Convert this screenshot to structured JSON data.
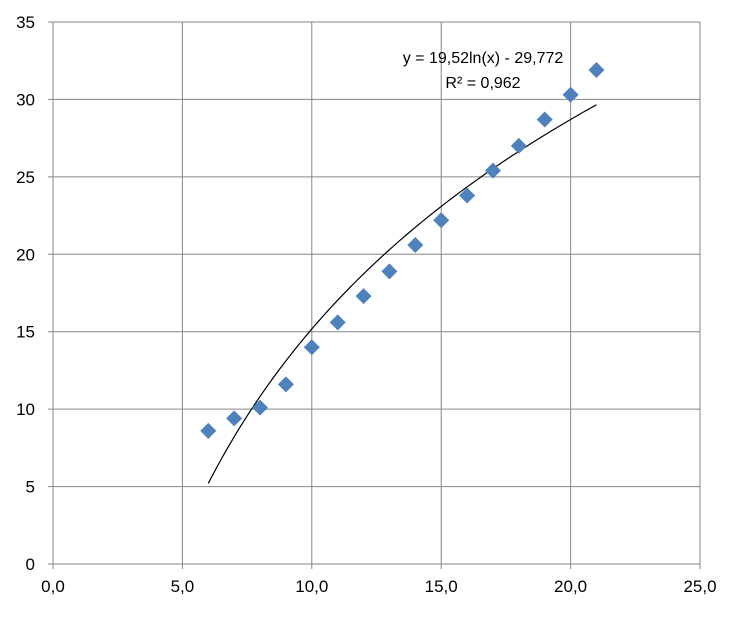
{
  "chart_data": {
    "type": "scatter",
    "title": "",
    "xlabel": "",
    "ylabel": "",
    "xlim": [
      0,
      25
    ],
    "ylim": [
      0,
      35
    ],
    "x_ticks": [
      0,
      5,
      10,
      15,
      20,
      25
    ],
    "y_ticks": [
      0,
      5,
      10,
      15,
      20,
      25,
      30,
      35
    ],
    "x_tick_labels": [
      "0,0",
      "5,0",
      "10,0",
      "15,0",
      "20,0",
      "25,0"
    ],
    "y_tick_labels": [
      "0",
      "5",
      "10",
      "15",
      "20",
      "25",
      "30",
      "35"
    ],
    "grid": true,
    "legend": "none",
    "series": [
      {
        "marker": "diamond",
        "color": "#4F81BD",
        "x": [
          6,
          7,
          8,
          9,
          10,
          11,
          12,
          13,
          14,
          15,
          16,
          17,
          18,
          19,
          20,
          21
        ],
        "y": [
          8.6,
          9.4,
          10.1,
          11.6,
          14.0,
          15.6,
          17.3,
          18.9,
          20.6,
          22.2,
          23.8,
          25.4,
          27.0,
          28.7,
          30.3,
          31.9
        ]
      }
    ],
    "trendline": {
      "kind": "logarithmic",
      "a": 19.52,
      "b": -29.772,
      "x_range": [
        6,
        21
      ],
      "color": "#000000"
    },
    "annotations": [
      "y = 19,52ln(x) - 29,772",
      "R² = 0,962"
    ]
  }
}
